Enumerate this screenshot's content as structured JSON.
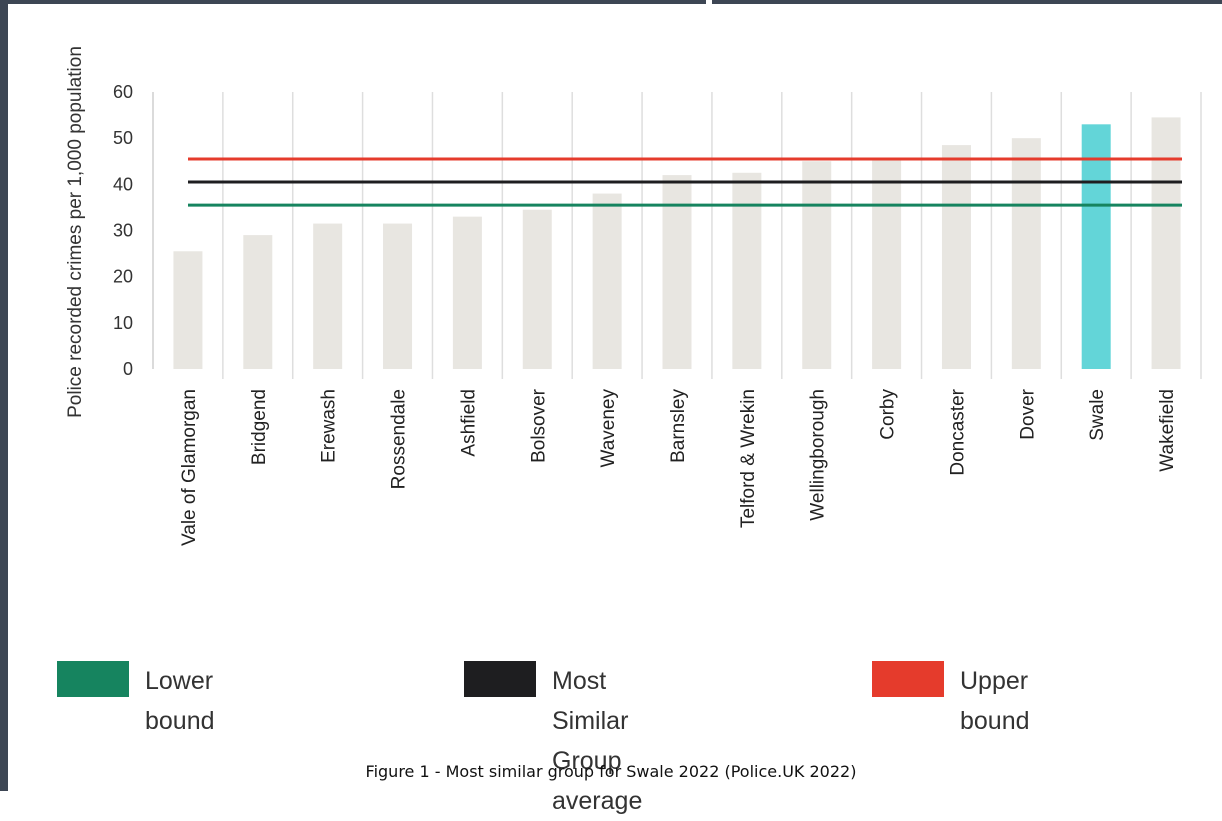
{
  "chart_data": {
    "type": "bar",
    "ylabel": "Police recorded crimes per 1,000 population",
    "ylim": [
      0,
      60
    ],
    "yticks": [
      0,
      10,
      20,
      30,
      40,
      50,
      60
    ],
    "grid": "vertical",
    "categories": [
      "Vale of Glamorgan",
      "Bridgend",
      "Erewash",
      "Rossendale",
      "Ashfield",
      "Bolsover",
      "Waveney",
      "Barnsley",
      "Telford & Wrekin",
      "Wellingborough",
      "Corby",
      "Doncaster",
      "Dover",
      "Swale",
      "Wakefield"
    ],
    "values": [
      25.5,
      29,
      31.5,
      31.5,
      33,
      34.5,
      38,
      42,
      42.5,
      45,
      45.5,
      48.5,
      50,
      53,
      54.5
    ],
    "highlight": "Swale",
    "bar_color": "#e8e6e1",
    "highlight_color": "#63d5d8",
    "lines": [
      {
        "name": "Lower bound",
        "value": 35.5,
        "color": "#16845f"
      },
      {
        "name": "Most Similar Group average",
        "value": 40.5,
        "color": "#1e1e20"
      },
      {
        "name": "Upper bound",
        "value": 45.5,
        "color": "#e53b2c"
      }
    ],
    "legend": [
      {
        "label": "Lower bound",
        "color": "#16845f"
      },
      {
        "label": "Most Similar Group average",
        "line1": "Most Similar Group",
        "line2": "average",
        "color": "#1e1e20"
      },
      {
        "label": "Upper bound",
        "color": "#e53b2c"
      }
    ]
  },
  "caption": "Figure 1 - Most similar group for Swale 2022 (Police.UK 2022)"
}
